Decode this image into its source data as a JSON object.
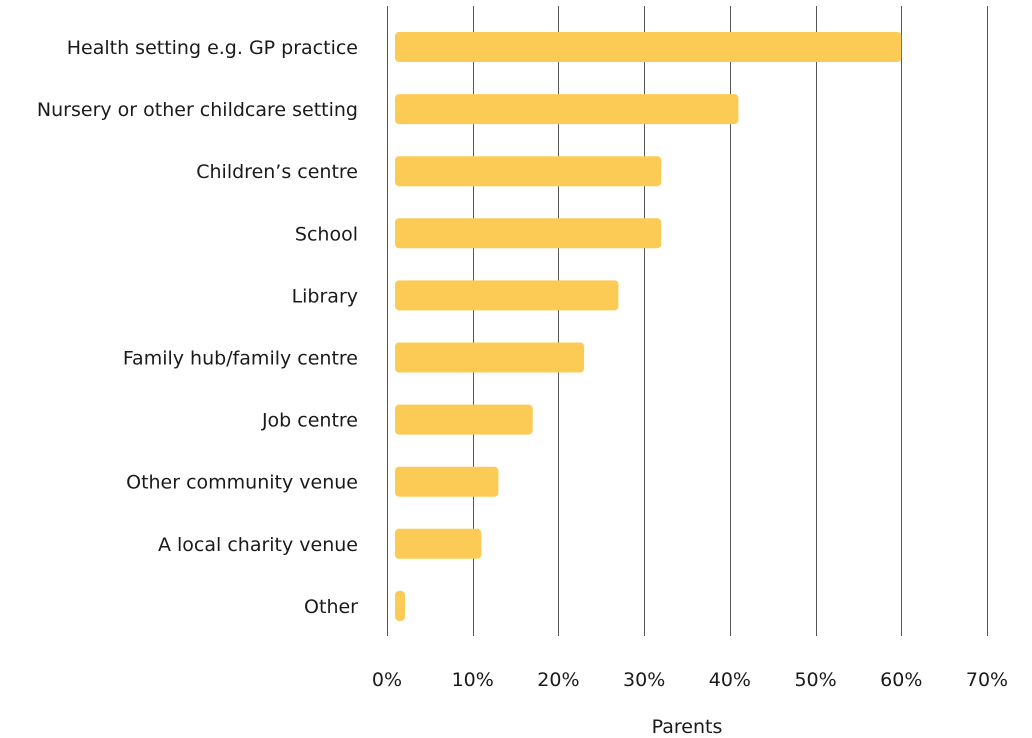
{
  "chart_data": {
    "type": "bar",
    "orientation": "horizontal",
    "categories": [
      "Health setting e.g. GP practice",
      "Nursery or other childcare setting",
      "Children’s centre",
      "School",
      "Library",
      "Family hub/family centre",
      "Job centre",
      "Other community venue",
      "A local charity venue",
      "Other"
    ],
    "values": [
      60,
      41,
      32,
      32,
      27,
      23,
      17,
      13,
      11,
      1
    ],
    "xlabel": "Parents",
    "ylabel": "",
    "xlim": [
      0,
      70
    ],
    "xticks": [
      0,
      10,
      20,
      30,
      40,
      50,
      60,
      70
    ],
    "tick_labels": [
      "0%",
      "10%",
      "20%",
      "30%",
      "40%",
      "50%",
      "60%",
      "70%"
    ],
    "grid": "vertical",
    "legend": "none",
    "colors": {
      "bar": "#FCCB55",
      "gridline": "#555555",
      "text": "#1a1a1a"
    }
  }
}
